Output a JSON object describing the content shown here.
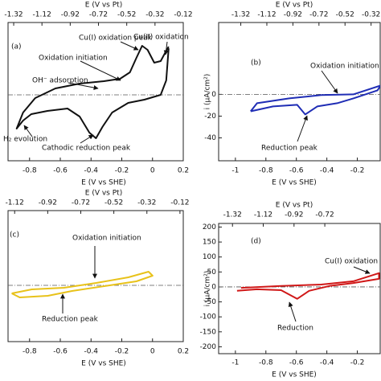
{
  "chart_data": [
    {
      "type": "line",
      "label": "(a)",
      "x_label": "E (V vs SHE)",
      "x2_label": "E (V vs Pt)",
      "xlim": [
        -0.94,
        0.2
      ],
      "xticks": [
        -0.8,
        -0.6,
        -0.4,
        -0.2,
        0,
        0.2
      ],
      "x2lim": [
        -1.36,
        -0.12
      ],
      "x2ticks": [
        -1.32,
        -1.12,
        -0.92,
        -0.72,
        -0.52,
        -0.32,
        -0.12
      ],
      "ylim": [
        -82,
        90
      ],
      "zero_line": true,
      "series": [
        {
          "color": "#111111",
          "x": [
            0.105,
            0.089,
            0.053,
            -0.053,
            -0.158,
            -0.263,
            -0.326,
            -0.368,
            -0.411,
            -0.474,
            -0.553,
            -0.684,
            -0.789,
            -0.842,
            -0.884,
            -0.842,
            -0.763,
            -0.632,
            -0.474,
            -0.316,
            -0.211,
            -0.147,
            -0.105,
            -0.068,
            -0.032,
            0.011,
            0.053,
            0.084,
            0.105
          ],
          "values": [
            58,
            18,
            0,
            -6,
            -10,
            -22,
            -40,
            -54,
            -47,
            -27,
            -17,
            -20,
            -24,
            -32,
            -42,
            -22,
            -4,
            8,
            14,
            17,
            20,
            28,
            46,
            61,
            56,
            40,
            42,
            53,
            60
          ]
        }
      ],
      "annotations": [
        {
          "text": "Cu(I) oxidation peak"
        },
        {
          "text": "Cu(II) oxidation"
        },
        {
          "text": "Oxidation initiation"
        },
        {
          "text": "OH⁻ adsorption"
        },
        {
          "text": "H₂ evolution"
        },
        {
          "text": "Cathodic reduction peak"
        }
      ]
    },
    {
      "type": "line",
      "label": "(b)",
      "x_label": "E (V vs SHE)",
      "x2_label": "E (V vs Pt)",
      "y_label": "i (μA/cm²)",
      "xlim": [
        -1.11,
        -0.05
      ],
      "xticks": [
        -1,
        -0.8,
        -0.6,
        -0.4,
        -0.2
      ],
      "x2lim": [
        -1.49,
        -0.25
      ],
      "x2ticks": [
        -1.32,
        -1.12,
        -0.92,
        -0.72,
        -0.52,
        -0.32
      ],
      "ylim": [
        -61,
        66
      ],
      "yticks": [
        -40,
        -20,
        0
      ],
      "zero_line": true,
      "series": [
        {
          "color": "#1f2db5",
          "x": [
            -0.9,
            -0.858,
            -0.647,
            -0.437,
            -0.226,
            -0.047,
            -0.068,
            -0.226,
            -0.332,
            -0.463,
            -0.542,
            -0.595,
            -0.753,
            -0.9
          ],
          "values": [
            -15.6,
            -8.1,
            -3.7,
            -0.7,
            0,
            8.1,
            3.7,
            -3.7,
            -8.1,
            -11.1,
            -18.5,
            -9.6,
            -11.1,
            -15.6
          ]
        }
      ],
      "annotations": [
        {
          "text": "Oxidation initiation"
        },
        {
          "text": "Reduction peak"
        }
      ]
    },
    {
      "type": "line",
      "label": "(c)",
      "x_label": "E (V vs SHE)",
      "x2_label": "E (V vs Pt)",
      "xlim": [
        -0.94,
        0.2
      ],
      "xticks": [
        -0.8,
        -0.6,
        -0.4,
        -0.2,
        0,
        0.2
      ],
      "x2lim": [
        -1.16,
        -0.1
      ],
      "x2ticks": [
        -1.12,
        -0.92,
        -0.72,
        -0.52,
        -0.32,
        -0.12
      ],
      "ylim": [
        -70,
        93
      ],
      "zero_line": true,
      "series": [
        {
          "color": "#e8c21a",
          "x": [
            -0.916,
            -0.785,
            -0.576,
            -0.366,
            -0.157,
            -0.026,
            0,
            -0.105,
            -0.314,
            -0.524,
            -0.681,
            -0.864,
            -0.916
          ],
          "values": [
            -10,
            -5,
            -3,
            3,
            10,
            17,
            12,
            5,
            -1,
            -7,
            -13,
            -15,
            -10
          ]
        }
      ],
      "annotations": [
        {
          "text": "Oxidation initiation"
        },
        {
          "text": "Reduction peak"
        }
      ]
    },
    {
      "type": "line",
      "label": "(d)",
      "x_label": "E (V vs SHE)",
      "x2_label": "E (V vs Pt)",
      "y_label": "i (μA/cm²)",
      "xlim": [
        -1.11,
        -0.05
      ],
      "xticks": [
        -1,
        -0.8,
        -0.6,
        -0.4,
        -0.2
      ],
      "x2lim": [
        -1.41,
        -0.36
      ],
      "x2ticks": [
        -1.32,
        -1.12,
        -0.92,
        -0.72
      ],
      "ylim": [
        -223,
        212
      ],
      "yticks": [
        -200,
        -150,
        -100,
        -50,
        0,
        50,
        100,
        150,
        200
      ],
      "zero_line": true,
      "series": [
        {
          "color": "#d01818",
          "x": [
            -0.989,
            -0.858,
            -0.7,
            -0.595,
            -0.516,
            -0.384,
            -0.226,
            -0.058,
            -0.058,
            -0.226,
            -0.437,
            -0.7,
            -0.963
          ],
          "values": [
            -13,
            -8,
            -11,
            -40,
            -13,
            3,
            13,
            27,
            46,
            19,
            8,
            3,
            -3
          ]
        }
      ],
      "annotations": [
        {
          "text": "Cu(I) oxidation peak"
        },
        {
          "text": "Reduction"
        }
      ]
    }
  ]
}
